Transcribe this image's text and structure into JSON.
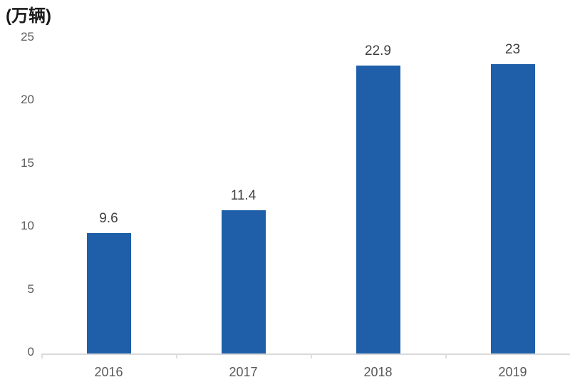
{
  "chart_data": {
    "type": "bar",
    "title": "(万辆)",
    "categories": [
      "2016",
      "2017",
      "2018",
      "2019"
    ],
    "values": [
      9.6,
      11.4,
      22.9,
      23
    ],
    "value_labels": [
      "9.6",
      "11.4",
      "22.9",
      "23"
    ],
    "xlabel": "",
    "ylabel": "(万辆)",
    "ylim": [
      0,
      25
    ],
    "yticks": [
      25,
      20,
      15,
      10,
      5,
      0
    ],
    "grid": false,
    "legend": false,
    "bar_color": "#1f5fa9",
    "axis_line_color": "#d9d9d9",
    "tick_color": "#dedede",
    "axis_label_color": "#595959",
    "value_label_color": "#3f3f3f",
    "title_color": "#1a1a1a"
  }
}
